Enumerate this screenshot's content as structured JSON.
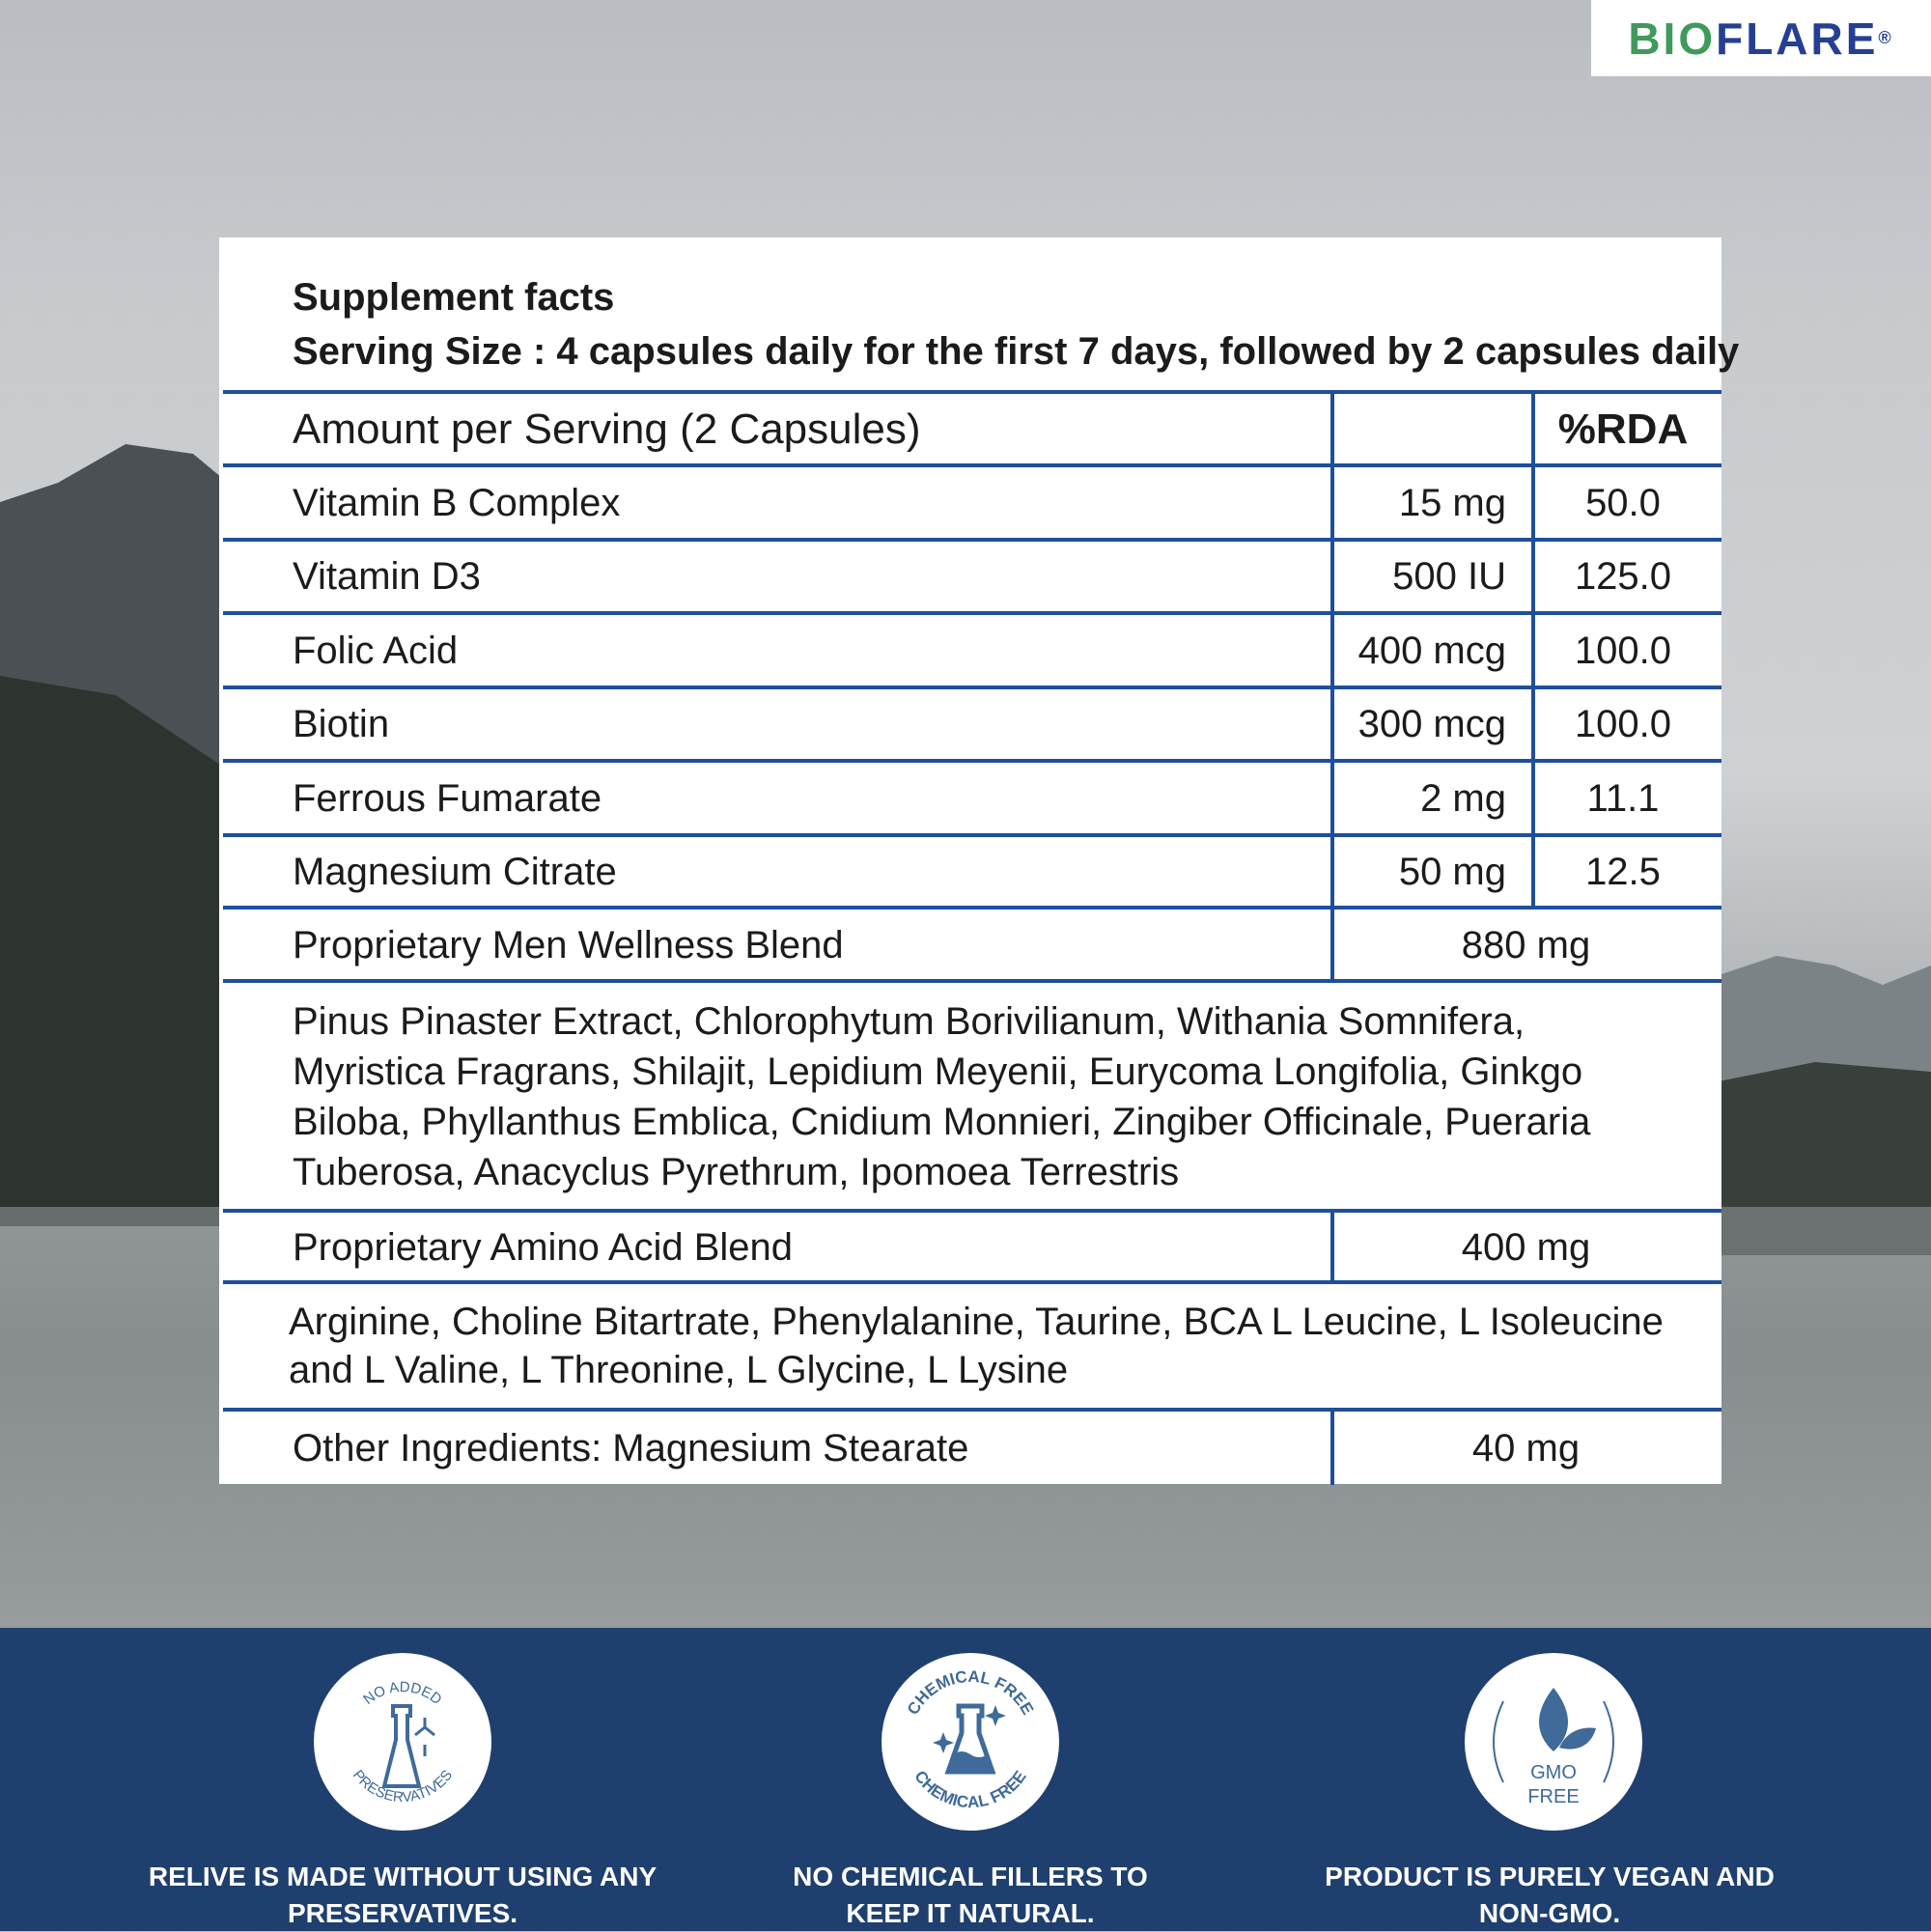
{
  "brand": {
    "logo_text_green": "BIO",
    "logo_text_blue": "FLARE",
    "registered": "®",
    "colors": {
      "green": "#3f9a5b",
      "blue": "#253f92"
    }
  },
  "facts": {
    "title": "Supplement facts",
    "serving_size": "Serving Size : 4 capsules daily for the first 7 days, followed by 2 capsules daily",
    "header": {
      "label": "Amount per Serving (2 Capsules)",
      "amount": "",
      "rda": "%RDA"
    },
    "rows": [
      {
        "name": "Vitamin B Complex",
        "amount": "15 mg",
        "rda": "50.0"
      },
      {
        "name": "Vitamin D3",
        "amount": "500 IU",
        "rda": "125.0"
      },
      {
        "name": "Folic Acid",
        "amount": "400 mcg",
        "rda": "100.0"
      },
      {
        "name": "Biotin",
        "amount": "300 mcg",
        "rda": "100.0"
      },
      {
        "name": "Ferrous Fumarate",
        "amount": "2 mg",
        "rda": "11.1"
      },
      {
        "name": "Magnesium Citrate",
        "amount": "50 mg",
        "rda": "12.5"
      }
    ],
    "blend1": {
      "name": "Proprietary Men Wellness Blend",
      "amount": "880 mg",
      "ingredients": "Pinus Pinaster Extract, Chlorophytum Borivilianum, Withania Somnifera, Myristica Fragrans, Shilajit, Lepidium Meyenii, Eurycoma Longifolia, Ginkgo Biloba, Phyllanthus Emblica, Cnidium Monnieri, Zingiber Officinale, Pueraria Tuberosa, Anacyclus Pyrethrum,  Ipomoea Terrestris"
    },
    "blend2": {
      "name": "Proprietary Amino Acid Blend",
      "amount": "400 mg",
      "ingredients": "Arginine, Choline Bitartrate, Phenylalanine,  Taurine, BCA L Leucine, L Isoleucine and L Valine, L Threonine, L Glycine, L Lysine"
    },
    "other": {
      "name": "Other Ingredients: Magnesium Stearate",
      "amount": "40 mg"
    }
  },
  "badges": [
    {
      "icon": "flask-molecule-icon",
      "ring_top": "NO ADDED",
      "ring_bottom": "PRESERVATIVES",
      "caption": "RELIVE IS MADE WITHOUT USING ANY PRESERVATIVES."
    },
    {
      "icon": "chemical-flask-icon",
      "ring_top": "CHEMICAL FREE",
      "ring_bottom": "CHEMICAL FREE",
      "caption": "NO CHEMICAL FILLERS TO KEEP IT NATURAL."
    },
    {
      "icon": "leaf-icon",
      "line1": "GMO",
      "line2": "FREE",
      "caption": "PRODUCT IS PURELY VEGAN AND NON-GMO."
    }
  ]
}
